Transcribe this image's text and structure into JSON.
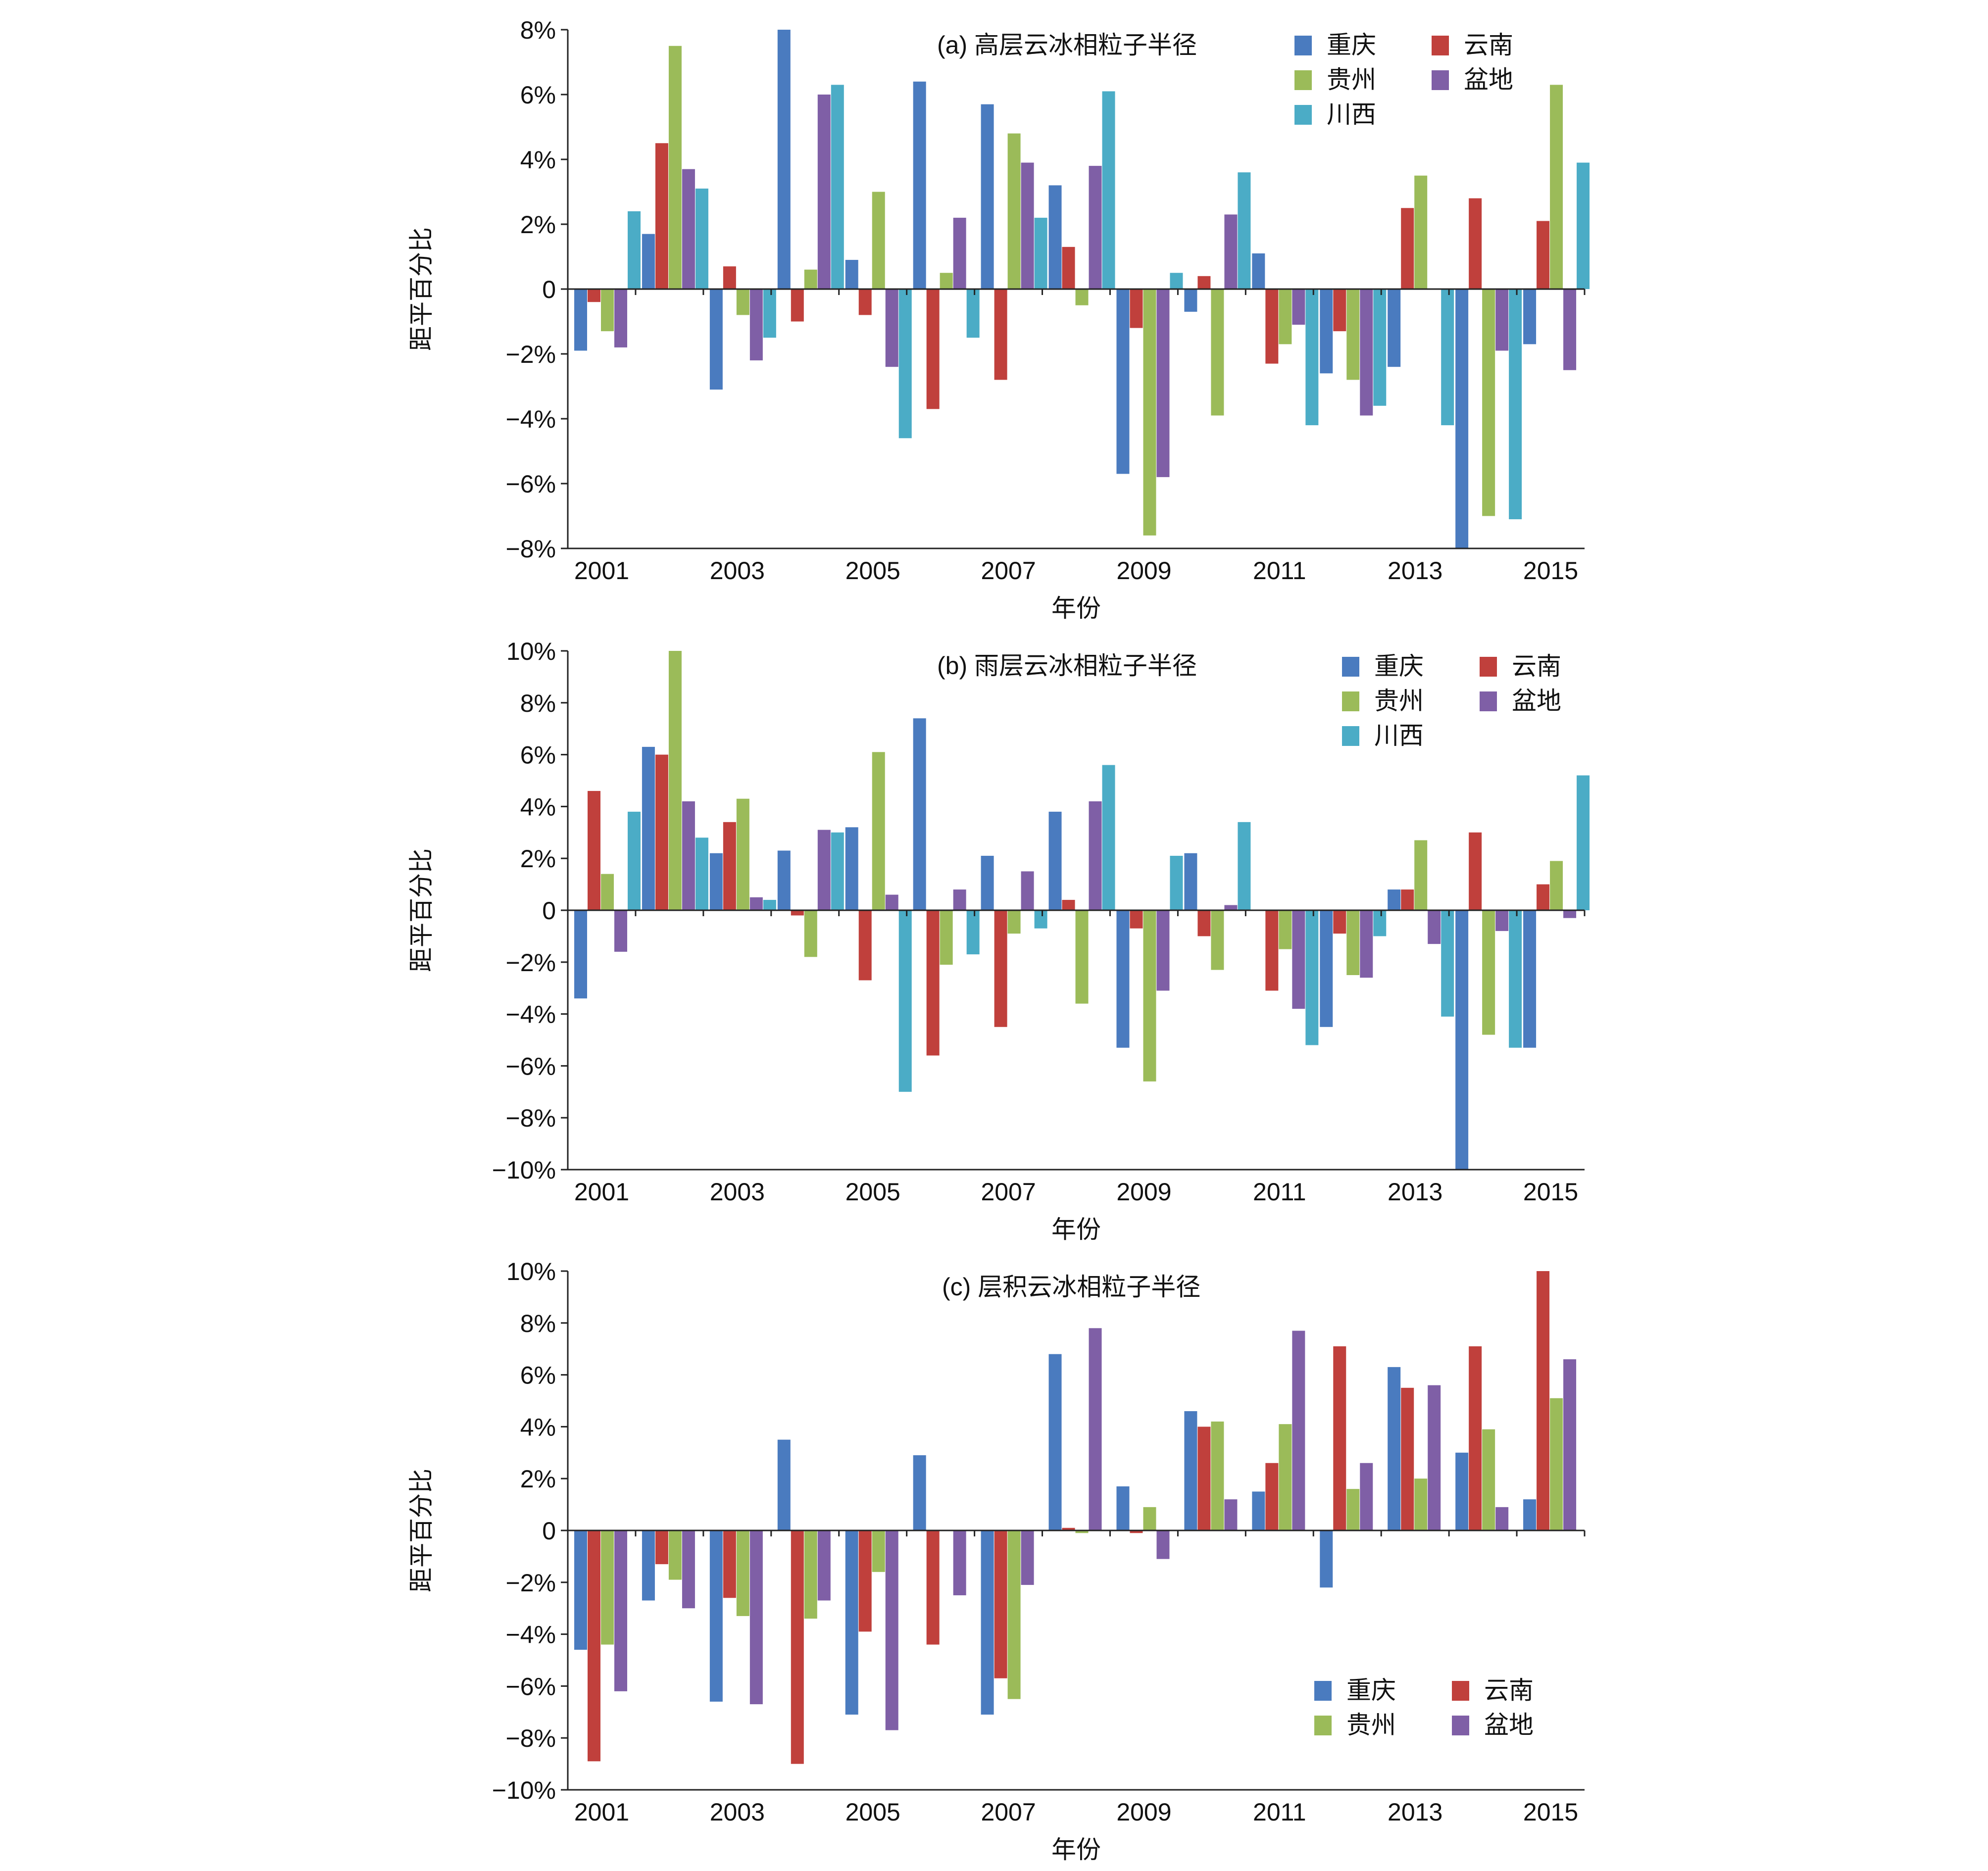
{
  "colors": {
    "重庆": "#4a7bbf",
    "云南": "#c0403c",
    "贵州": "#9bbb59",
    "盆地": "#7f5fa6",
    "川西": "#4bacc6"
  },
  "chart_data": [
    {
      "type": "bar",
      "title": "(a)  高层云冰相粒子半径",
      "xlabel": "年份",
      "ylabel": "距平百分比",
      "ylim": [
        -8,
        8
      ],
      "yticks": [
        -8,
        -6,
        -4,
        -2,
        0,
        2,
        4,
        6,
        8
      ],
      "ytick_labels": [
        "−8%",
        "−6%",
        "−4%",
        "−2%",
        "0",
        "2%",
        "4%",
        "6%",
        "8%"
      ],
      "xtick_labels": [
        "2001",
        "2003",
        "2005",
        "2007",
        "2009",
        "2011",
        "2013",
        "2015"
      ],
      "legend_position": "top-right",
      "legend_columns": 2,
      "categories": [
        "2001",
        "2002",
        "2003",
        "2004",
        "2005",
        "2006",
        "2007",
        "2008",
        "2009",
        "2010",
        "2011",
        "2012",
        "2013",
        "2014",
        "2015"
      ],
      "series": [
        {
          "name": "重庆",
          "values": [
            -1.9,
            1.7,
            -3.1,
            8.0,
            0.9,
            6.4,
            5.7,
            3.2,
            -5.7,
            -0.7,
            1.1,
            -2.6,
            -2.4,
            -8.0,
            -1.7
          ]
        },
        {
          "name": "云南",
          "values": [
            -0.4,
            4.5,
            0.7,
            -1.0,
            -0.8,
            -3.7,
            -2.8,
            1.3,
            -1.2,
            0.4,
            -2.3,
            -1.3,
            2.5,
            2.8,
            2.1
          ]
        },
        {
          "name": "贵州",
          "values": [
            -1.3,
            7.5,
            -0.8,
            0.6,
            3.0,
            0.5,
            4.8,
            -0.5,
            -7.6,
            -3.9,
            -1.7,
            -2.8,
            3.5,
            -7.0,
            6.3
          ]
        },
        {
          "name": "盆地",
          "values": [
            -1.8,
            3.7,
            -2.2,
            6.0,
            -2.4,
            2.2,
            3.9,
            3.8,
            -5.8,
            2.3,
            -1.1,
            -3.9,
            0,
            -1.9,
            -2.5
          ]
        },
        {
          "name": "川西",
          "values": [
            2.4,
            3.1,
            -1.5,
            6.3,
            -4.6,
            -1.5,
            2.2,
            6.1,
            0.5,
            3.6,
            -4.2,
            -3.6,
            -4.2,
            -7.1,
            3.9
          ]
        }
      ]
    },
    {
      "type": "bar",
      "title": "(b)  雨层云冰相粒子半径",
      "xlabel": "年份",
      "ylabel": "距平百分比",
      "ylim": [
        -10,
        10
      ],
      "yticks": [
        -10,
        -8,
        -6,
        -4,
        -2,
        0,
        2,
        4,
        6,
        8,
        10
      ],
      "ytick_labels": [
        "−10%",
        "−8%",
        "−6%",
        "−4%",
        "−2%",
        "0",
        "2%",
        "4%",
        "6%",
        "8%",
        "10%"
      ],
      "xtick_labels": [
        "2001",
        "2003",
        "2005",
        "2007",
        "2009",
        "2011",
        "2013",
        "2015"
      ],
      "legend_position": "top-right",
      "legend_columns": 2,
      "categories": [
        "2001",
        "2002",
        "2003",
        "2004",
        "2005",
        "2006",
        "2007",
        "2008",
        "2009",
        "2010",
        "2011",
        "2012",
        "2013",
        "2014",
        "2015"
      ],
      "series": [
        {
          "name": "重庆",
          "values": [
            -3.4,
            6.3,
            2.2,
            2.3,
            3.2,
            7.4,
            2.1,
            3.8,
            -5.3,
            2.2,
            0,
            -4.5,
            0.8,
            -10.0,
            -5.3
          ]
        },
        {
          "name": "云南",
          "values": [
            4.6,
            6.0,
            3.4,
            -0.2,
            -2.7,
            -5.6,
            -4.5,
            0.4,
            -0.7,
            -1.0,
            -3.1,
            -0.9,
            0.8,
            3.0,
            1.0
          ]
        },
        {
          "name": "贵州",
          "values": [
            1.4,
            10.0,
            4.3,
            -1.8,
            6.1,
            -2.1,
            -0.9,
            -3.6,
            -6.6,
            -2.3,
            -1.5,
            -2.5,
            2.7,
            -4.8,
            1.9
          ]
        },
        {
          "name": "盆地",
          "values": [
            -1.6,
            4.2,
            0.5,
            3.1,
            0.6,
            0.8,
            1.5,
            4.2,
            -3.1,
            0.2,
            -3.8,
            -2.6,
            -1.3,
            -0.8,
            -0.3
          ]
        },
        {
          "name": "川西",
          "values": [
            3.8,
            2.8,
            0.4,
            3.0,
            -7.0,
            -1.7,
            -0.7,
            5.6,
            2.1,
            3.4,
            -5.2,
            -1.0,
            -4.1,
            -5.3,
            5.2
          ]
        }
      ]
    },
    {
      "type": "bar",
      "title": "(c)  层积云冰相粒子半径",
      "xlabel": "年份",
      "ylabel": "距平百分比",
      "ylim": [
        -10,
        10
      ],
      "yticks": [
        -10,
        -8,
        -6,
        -4,
        -2,
        0,
        2,
        4,
        6,
        8,
        10
      ],
      "ytick_labels": [
        "−10%",
        "−8%",
        "−6%",
        "−4%",
        "−2%",
        "0",
        "2%",
        "4%",
        "6%",
        "8%",
        "10%"
      ],
      "xtick_labels": [
        "2001",
        "2003",
        "2005",
        "2007",
        "2009",
        "2011",
        "2013",
        "2015"
      ],
      "legend_position": "bottom-right",
      "legend_columns": 2,
      "categories": [
        "2001",
        "2002",
        "2003",
        "2004",
        "2005",
        "2006",
        "2007",
        "2008",
        "2009",
        "2010",
        "2011",
        "2012",
        "2013",
        "2014",
        "2015"
      ],
      "series": [
        {
          "name": "重庆",
          "values": [
            -4.6,
            -2.7,
            -6.6,
            3.5,
            -7.1,
            2.9,
            -7.1,
            6.8,
            1.7,
            4.6,
            1.5,
            -2.2,
            6.3,
            3.0,
            1.2
          ]
        },
        {
          "name": "云南",
          "values": [
            -8.9,
            -1.3,
            -2.6,
            -9.0,
            -3.9,
            -4.4,
            -5.7,
            0.1,
            -0.1,
            4.0,
            2.6,
            7.1,
            5.5,
            7.1,
            10.0
          ]
        },
        {
          "name": "贵州",
          "values": [
            -4.4,
            -1.9,
            -3.3,
            -3.4,
            -1.6,
            0,
            -6.5,
            -0.1,
            0.9,
            4.2,
            4.1,
            1.6,
            2.0,
            3.9,
            5.1
          ]
        },
        {
          "name": "盆地",
          "values": [
            -6.2,
            -3.0,
            -6.7,
            -2.7,
            -7.7,
            -2.5,
            -2.1,
            7.8,
            -1.1,
            1.2,
            7.7,
            2.6,
            5.6,
            0.9,
            6.6
          ]
        }
      ]
    }
  ]
}
